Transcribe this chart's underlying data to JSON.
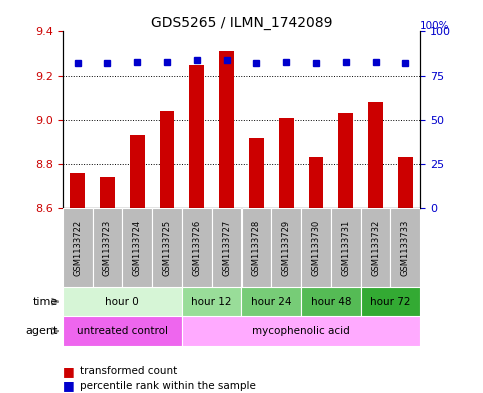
{
  "title": "GDS5265 / ILMN_1742089",
  "samples": [
    "GSM1133722",
    "GSM1133723",
    "GSM1133724",
    "GSM1133725",
    "GSM1133726",
    "GSM1133727",
    "GSM1133728",
    "GSM1133729",
    "GSM1133730",
    "GSM1133731",
    "GSM1133732",
    "GSM1133733"
  ],
  "bar_values": [
    8.76,
    8.74,
    8.93,
    9.04,
    9.25,
    9.31,
    8.92,
    9.01,
    8.83,
    9.03,
    9.08,
    8.83
  ],
  "percentile_values": [
    82,
    82,
    83,
    83,
    84,
    84,
    82,
    83,
    82,
    83,
    83,
    82
  ],
  "bar_bottom": 8.6,
  "ylim_left": [
    8.6,
    9.4
  ],
  "ylim_right": [
    0,
    100
  ],
  "yticks_left": [
    8.6,
    8.8,
    9.0,
    9.2,
    9.4
  ],
  "yticks_right": [
    0,
    25,
    50,
    75,
    100
  ],
  "bar_color": "#cc0000",
  "percentile_color": "#0000cc",
  "time_groups": [
    {
      "label": "hour 0",
      "start": 0,
      "end": 4,
      "color": "#d6f5d6"
    },
    {
      "label": "hour 12",
      "start": 4,
      "end": 6,
      "color": "#99dd99"
    },
    {
      "label": "hour 24",
      "start": 6,
      "end": 8,
      "color": "#77cc77"
    },
    {
      "label": "hour 48",
      "start": 8,
      "end": 10,
      "color": "#55bb55"
    },
    {
      "label": "hour 72",
      "start": 10,
      "end": 12,
      "color": "#33aa33"
    }
  ],
  "agent_groups": [
    {
      "label": "untreated control",
      "start": 0,
      "end": 4,
      "color": "#ee66ee"
    },
    {
      "label": "mycophenolic acid",
      "start": 4,
      "end": 12,
      "color": "#ffaaff"
    }
  ],
  "sample_bg_color": "#bbbbbb",
  "grid_color": "#000000",
  "left_tick_color": "#cc0000",
  "right_tick_color": "#0000cc",
  "fig_bg": "#ffffff"
}
